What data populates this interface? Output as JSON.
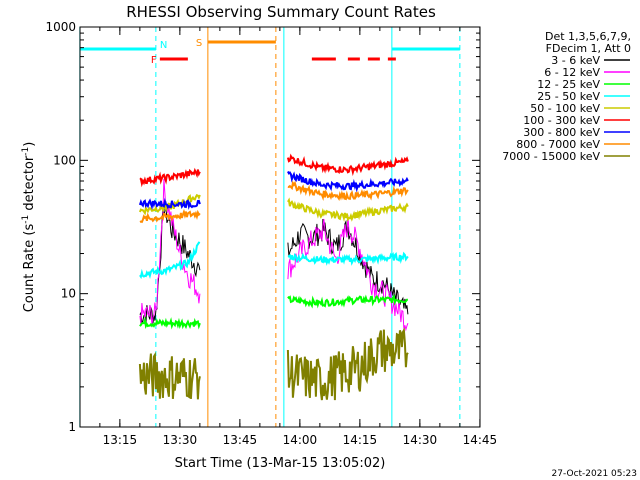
{
  "chart_data": {
    "type": "line",
    "title": "RHESSI Observing Summary Count Rates",
    "xlabel": "Start Time (13-Mar-15 13:05:02)",
    "ylabel": "Count Rate (s⁻¹ detector⁻¹)",
    "ylabel_plain": "Count Rate (s",
    "ylabel_sup1": "-1",
    "ylabel_mid": " detector",
    "ylabel_sup2": "-1",
    "ylabel_end": ")",
    "y_scale": "log",
    "ylim": [
      1,
      1000
    ],
    "xlim": [
      "13:05:02",
      "14:45:02"
    ],
    "x_ticks": [
      "13:15",
      "13:30",
      "13:45",
      "14:00",
      "14:15",
      "14:30",
      "14:45"
    ],
    "y_ticks": [
      "1",
      "10",
      "100",
      "1000"
    ],
    "grid": false,
    "legend_position": "right",
    "legend_header": [
      "Det 1,3,5,6,7,9,",
      "FDecim 1, Att 0"
    ],
    "footer_date": "27-Oct-2021 05:23",
    "flags": [
      {
        "label": "N",
        "color": "#00ffff",
        "spans": [
          [
            "13:05",
            "13:24"
          ],
          [
            "14:23",
            "14:40"
          ]
        ]
      },
      {
        "label": "F",
        "color": "#ff0000",
        "spans": [
          [
            "13:25",
            "13:32"
          ],
          [
            "14:03",
            "14:09"
          ],
          [
            "14:12",
            "14:15"
          ],
          [
            "14:17",
            "14:20"
          ],
          [
            "14:22",
            "14:24"
          ]
        ]
      },
      {
        "label": "S",
        "color": "#ff8c00",
        "spans": [
          [
            "13:37",
            "13:54"
          ]
        ]
      }
    ],
    "vertical_markers": [
      {
        "time": "13:05",
        "color": "#00ffff",
        "style": "solid"
      },
      {
        "time": "13:24",
        "color": "#00ffff",
        "style": "dashed"
      },
      {
        "time": "13:37",
        "color": "#ff8c00",
        "style": "solid"
      },
      {
        "time": "13:54",
        "color": "#ff8c00",
        "style": "dashed"
      },
      {
        "time": "13:56",
        "color": "#00ffff",
        "style": "solid"
      },
      {
        "time": "14:23",
        "color": "#00ffff",
        "style": "solid"
      },
      {
        "time": "14:40",
        "color": "#00ffff",
        "style": "dashed"
      }
    ],
    "intervals": [
      [
        "13:20",
        "13:35"
      ],
      [
        "13:57",
        "14:27"
      ]
    ],
    "series": [
      {
        "name": "3 - 6 keV",
        "color": "#000000",
        "segments": [
          {
            "t": [
              "13:20",
              "13:24",
              "13:26",
              "13:28",
              "13:30",
              "13:32",
              "13:35"
            ],
            "v": [
              7,
              7,
              45,
              30,
              25,
              20,
              15
            ]
          },
          {
            "t": [
              "13:57",
              "14:00",
              "14:03",
              "14:06",
              "14:09",
              "14:12",
              "14:15",
              "14:18",
              "14:21",
              "14:24",
              "14:27"
            ],
            "v": [
              20,
              28,
              26,
              30,
              22,
              32,
              20,
              13,
              12,
              9,
              7
            ]
          }
        ]
      },
      {
        "name": "6 - 12 keV",
        "color": "#ff00ff",
        "segments": [
          {
            "t": [
              "13:20",
              "13:24",
              "13:26",
              "13:28",
              "13:30",
              "13:32",
              "13:35"
            ],
            "v": [
              7,
              7,
              60,
              35,
              20,
              14,
              10
            ]
          },
          {
            "t": [
              "13:57",
              "14:00",
              "14:03",
              "14:06",
              "14:09",
              "14:12",
              "14:15",
              "14:18",
              "14:21",
              "14:24",
              "14:27"
            ],
            "v": [
              15,
              20,
              25,
              30,
              18,
              33,
              22,
              12,
              10,
              8,
              6
            ]
          }
        ]
      },
      {
        "name": "12 - 25 keV",
        "color": "#00ff00",
        "segments": [
          {
            "t": [
              "13:20",
              "13:27",
              "13:35"
            ],
            "v": [
              6,
              6,
              6
            ]
          },
          {
            "t": [
              "13:57",
              "14:05",
              "14:15",
              "14:27"
            ],
            "v": [
              9,
              8.5,
              9,
              9
            ]
          }
        ]
      },
      {
        "name": "25 - 50 keV",
        "color": "#00ffff",
        "segments": [
          {
            "t": [
              "13:20",
              "13:27",
              "13:32",
              "13:35"
            ],
            "v": [
              14,
              15,
              17,
              24
            ]
          },
          {
            "t": [
              "13:57",
              "14:05",
              "14:15",
              "14:27"
            ],
            "v": [
              19,
              18,
              18,
              19
            ]
          }
        ]
      },
      {
        "name": "50 - 100 keV",
        "color": "#cccc00",
        "segments": [
          {
            "t": [
              "13:20",
              "13:28",
              "13:35"
            ],
            "v": [
              42,
              45,
              55
            ]
          },
          {
            "t": [
              "13:57",
              "14:05",
              "14:12",
              "14:20",
              "14:27"
            ],
            "v": [
              48,
              40,
              38,
              42,
              45
            ]
          }
        ]
      },
      {
        "name": "100 - 300 keV",
        "color": "#ff0000",
        "segments": [
          {
            "t": [
              "13:20",
              "13:28",
              "13:35"
            ],
            "v": [
              70,
              75,
              82
            ]
          },
          {
            "t": [
              "13:57",
              "14:05",
              "14:12",
              "14:20",
              "14:27"
            ],
            "v": [
              105,
              88,
              85,
              92,
              98
            ]
          }
        ]
      },
      {
        "name": "300 - 800 keV",
        "color": "#0000ff",
        "segments": [
          {
            "t": [
              "13:20",
              "13:28",
              "13:35"
            ],
            "v": [
              48,
              47,
              47
            ]
          },
          {
            "t": [
              "13:57",
              "14:05",
              "14:12",
              "14:20",
              "14:27"
            ],
            "v": [
              78,
              66,
              64,
              67,
              70
            ]
          }
        ]
      },
      {
        "name": "800 - 7000 keV",
        "color": "#ff8c00",
        "segments": [
          {
            "t": [
              "13:20",
              "13:28",
              "13:35"
            ],
            "v": [
              36,
              38,
              40
            ]
          },
          {
            "t": [
              "13:57",
              "14:05",
              "14:12",
              "14:20",
              "14:27"
            ],
            "v": [
              66,
              56,
              54,
              56,
              60
            ]
          }
        ]
      },
      {
        "name": "7000 - 15000 keV",
        "color": "#808000",
        "segments": [
          {
            "t": [
              "13:20",
              "13:27",
              "13:35"
            ],
            "v": [
              2.4,
              2.4,
              2.4
            ]
          },
          {
            "t": [
              "13:57",
              "14:05",
              "14:15",
              "14:20",
              "14:27"
            ],
            "v": [
              2.5,
              2.2,
              2.8,
              3.8,
              3.6
            ]
          }
        ]
      }
    ]
  }
}
